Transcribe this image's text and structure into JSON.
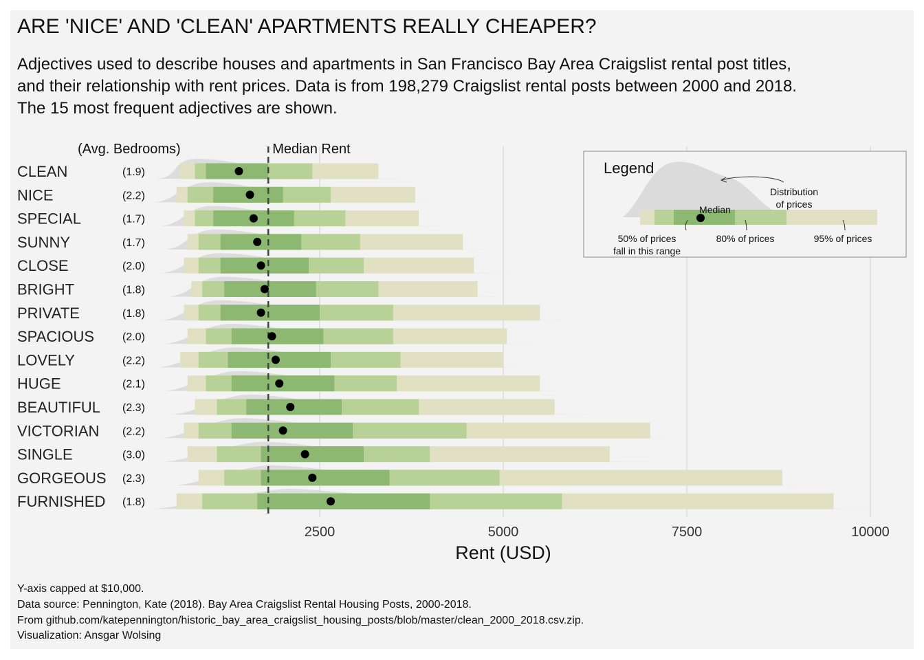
{
  "title": "ARE 'NICE' AND 'CLEAN' APARTMENTS REALLY CHEAPER?",
  "subtitle_lines": [
    "Adjectives used to describe houses and apartments in San Francisco Bay Area Craigslist rental post titles,",
    "and their relationship with rent prices. Data is from 198,279 Craigslist rental posts between 2000 and 2018.",
    "The 15 most frequent adjectives are shown."
  ],
  "caption_lines": [
    "Y-axis capped at $10,000.",
    "Data source: Pennington, Kate (2018). Bay Area Craigslist Rental Housing Posts, 2000-2018.",
    "From github.com/katepennington/historic_bay_area_craigslist_housing_posts/blob/master/clean_2000_2018.csv.zip.",
    "Visualization: Ansgar Wolsing"
  ],
  "legend": {
    "title": "Legend",
    "distribution_label": [
      "Distribution",
      "of prices"
    ],
    "median_label": "Median",
    "range50_label": [
      "50% of prices",
      "fall in this range"
    ],
    "range80_label": "80% of prices",
    "range95_label": "95% of prices"
  },
  "colors": {
    "background": "#f3f3f3",
    "range95": "#e2e0c3",
    "range80": "#b8d196",
    "range50": "#8cb872",
    "density": "#d6d6d6",
    "median_line": "#444444",
    "point": "#000000"
  },
  "chart_data": {
    "type": "interval",
    "xlabel": "Rent (USD)",
    "xlim": [
      0,
      10200
    ],
    "xticks": [
      2500,
      5000,
      7500,
      10000
    ],
    "bedrooms_header": "(Avg. Bedrooms)",
    "median_rent_label": "Median Rent",
    "overall_median": 1800,
    "grid": true,
    "legend_position": "top-right",
    "series": [
      {
        "adjective": "CLEAN",
        "bedrooms": "(1.9)",
        "median": 1400,
        "q": [
          600,
          800,
          950,
          1800,
          2400,
          3300
        ]
      },
      {
        "adjective": "NICE",
        "bedrooms": "(2.2)",
        "median": 1550,
        "q": [
          550,
          700,
          1050,
          2000,
          2650,
          3800
        ]
      },
      {
        "adjective": "SPECIAL",
        "bedrooms": "(1.7)",
        "median": 1600,
        "q": [
          650,
          800,
          1050,
          2150,
          2850,
          3850
        ]
      },
      {
        "adjective": "SUNNY",
        "bedrooms": "(1.7)",
        "median": 1650,
        "q": [
          700,
          850,
          1150,
          2250,
          3050,
          4450
        ]
      },
      {
        "adjective": "CLOSE",
        "bedrooms": "(2.0)",
        "median": 1700,
        "q": [
          650,
          850,
          1150,
          2350,
          3100,
          4600
        ]
      },
      {
        "adjective": "BRIGHT",
        "bedrooms": "(1.8)",
        "median": 1750,
        "q": [
          750,
          900,
          1200,
          2450,
          3300,
          4650
        ]
      },
      {
        "adjective": "PRIVATE",
        "bedrooms": "(1.8)",
        "median": 1700,
        "q": [
          650,
          850,
          1150,
          2500,
          3500,
          5500
        ]
      },
      {
        "adjective": "SPACIOUS",
        "bedrooms": "(2.0)",
        "median": 1850,
        "q": [
          700,
          950,
          1300,
          2550,
          3500,
          5050
        ]
      },
      {
        "adjective": "LOVELY",
        "bedrooms": "(2.2)",
        "median": 1900,
        "q": [
          600,
          850,
          1250,
          2650,
          3600,
          5000
        ]
      },
      {
        "adjective": "HUGE",
        "bedrooms": "(2.1)",
        "median": 1950,
        "q": [
          700,
          950,
          1300,
          2700,
          3550,
          5500
        ]
      },
      {
        "adjective": "BEAUTIFUL",
        "bedrooms": "(2.3)",
        "median": 2100,
        "q": [
          800,
          1100,
          1500,
          2800,
          3850,
          5700
        ]
      },
      {
        "adjective": "VICTORIAN",
        "bedrooms": "(2.2)",
        "median": 2000,
        "q": [
          650,
          850,
          1300,
          2950,
          4500,
          7000
        ]
      },
      {
        "adjective": "SINGLE",
        "bedrooms": "(3.0)",
        "median": 2300,
        "q": [
          700,
          1100,
          1700,
          3100,
          4000,
          6450
        ]
      },
      {
        "adjective": "GORGEOUS",
        "bedrooms": "(2.3)",
        "median": 2400,
        "q": [
          850,
          1200,
          1700,
          3450,
          4950,
          8800
        ]
      },
      {
        "adjective": "FURNISHED",
        "bedrooms": "(1.8)",
        "median": 2650,
        "q": [
          550,
          900,
          1650,
          4000,
          5800,
          9500
        ]
      }
    ]
  }
}
